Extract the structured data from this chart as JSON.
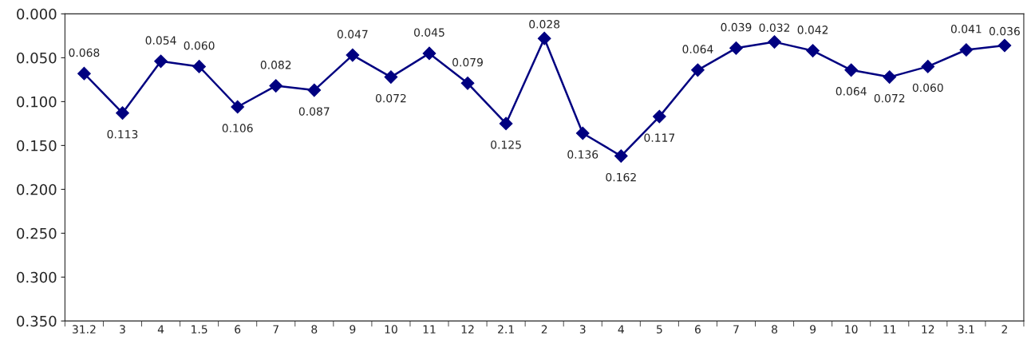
{
  "chart_data": {
    "type": "line",
    "categories": [
      "31.2",
      "3",
      "4",
      "1.5",
      "6",
      "7",
      "8",
      "9",
      "10",
      "11",
      "12",
      "2.1",
      "2",
      "3",
      "4",
      "5",
      "6",
      "7",
      "8",
      "9",
      "10",
      "11",
      "12",
      "3.1",
      "2"
    ],
    "series": [
      {
        "color": "#000080",
        "values": [
          0.068,
          0.113,
          0.054,
          0.06,
          0.106,
          0.082,
          0.087,
          0.047,
          0.072,
          0.045,
          0.079,
          0.125,
          0.028,
          0.136,
          0.162,
          0.117,
          0.064,
          0.039,
          0.032,
          0.042,
          0.064,
          0.072,
          0.06,
          0.041,
          0.036
        ],
        "value_labels": [
          "0.068",
          "0.113",
          "0.054",
          "0.060",
          "0.106",
          "0.082",
          "0.087",
          "0.047",
          "0.072",
          "0.045",
          "0.079",
          "0.125",
          "0.028",
          "0.136",
          "0.162",
          "0.117",
          "0.064",
          "0.039",
          "0.032",
          "0.042",
          "0.064",
          "0.072",
          "0.060",
          "0.041",
          "0.036"
        ]
      }
    ],
    "ylim": [
      0.35,
      0.0
    ],
    "yticks": [
      {
        "value": 0.0,
        "label": "0.000"
      },
      {
        "value": 0.05,
        "label": "0.050"
      },
      {
        "value": 0.1,
        "label": "0.100"
      },
      {
        "value": 0.15,
        "label": "0.150"
      },
      {
        "value": 0.2,
        "label": "0.200"
      },
      {
        "value": 0.25,
        "label": "0.250"
      },
      {
        "value": 0.3,
        "label": "0.300"
      },
      {
        "value": 0.35,
        "label": "0.350"
      }
    ],
    "marker": "diamond",
    "line_style": "solid",
    "grid": false,
    "legend": false
  }
}
